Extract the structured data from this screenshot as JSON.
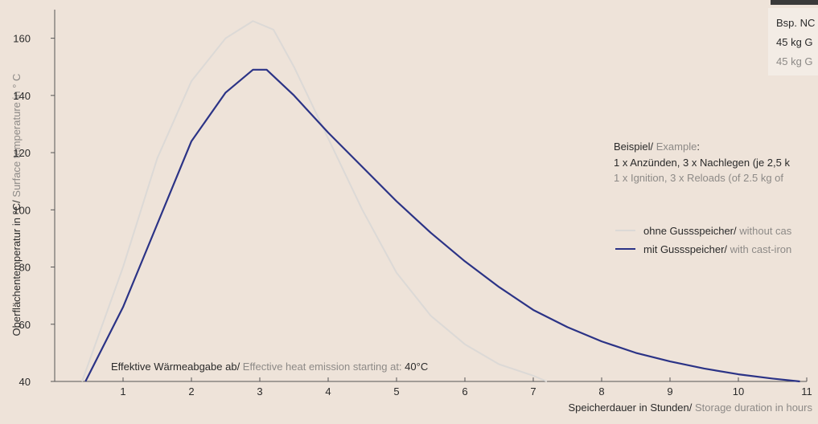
{
  "chart_data": {
    "type": "line",
    "ylabel": {
      "de": "Oberflächentemperatur in °C/",
      "en": " Surface temperature in ° C"
    },
    "xlabel": {
      "de": "Speicherdauer in Stunden/",
      "en": " Storage duration in hours"
    },
    "annotation": {
      "de": "Effektive Wärmeabgabe ab/",
      "en": " Effective heat emission starting at: ",
      "value": "40°C"
    },
    "example": {
      "title_de": "Beispiel/",
      "title_en": " Example",
      "colon": ":",
      "line_de": "1 x Anzünden, 3 x Nachlegen (je 2,5 k",
      "line_en": "1 x Ignition, 3 x Reloads (of 2.5 kg of"
    },
    "corner_note": [
      "Bsp. NC",
      "45 kg G",
      "45 kg G"
    ],
    "xlim": [
      0,
      11
    ],
    "xticks": [
      1,
      2,
      3,
      4,
      5,
      6,
      7,
      8,
      9,
      10,
      11
    ],
    "ylim": [
      40,
      170
    ],
    "yticks": [
      40,
      60,
      80,
      100,
      120,
      140,
      160
    ],
    "series": [
      {
        "name": "ohne Gussspeicher/",
        "name_en": " without cas",
        "color": "#dcd9d6",
        "x": [
          0.4,
          1,
          1.5,
          2,
          2.5,
          2.9,
          3.2,
          3.5,
          4,
          4.5,
          5,
          5.5,
          6,
          6.5,
          7,
          7.2
        ],
        "values": [
          40,
          80,
          118,
          145,
          160,
          166,
          163,
          150,
          125,
          100,
          78,
          63,
          53,
          46,
          42,
          40
        ]
      },
      {
        "name": "mit Gussspeicher/",
        "name_en": " with cast-iron",
        "color": "#2b3386",
        "x": [
          0.45,
          1,
          1.5,
          2,
          2.5,
          2.9,
          3.1,
          3.5,
          4,
          4.5,
          5,
          5.5,
          6,
          6.5,
          7,
          7.5,
          8,
          8.5,
          9,
          9.5,
          10,
          10.5,
          10.9
        ],
        "values": [
          40,
          66,
          95,
          124,
          141,
          149,
          149,
          140,
          127,
          115,
          103,
          92,
          82,
          73,
          65,
          59,
          54,
          50,
          47,
          44.5,
          42.5,
          41,
          40
        ]
      }
    ]
  }
}
